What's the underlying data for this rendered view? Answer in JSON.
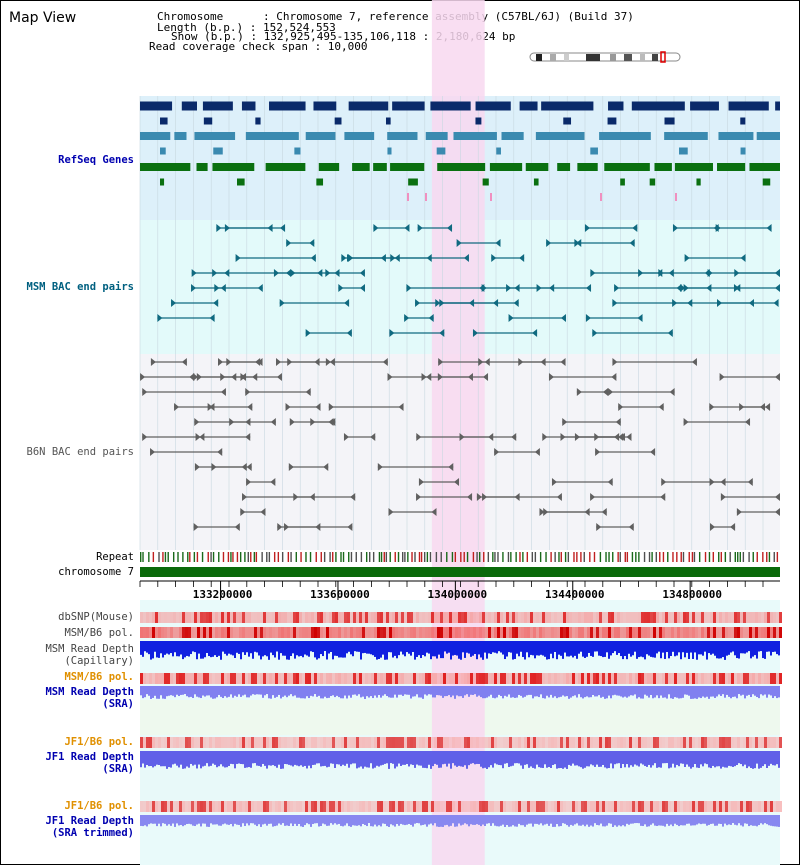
{
  "header": {
    "title": "Map View",
    "info": [
      "Chromosome      : Chromosome 7, reference assembly (C57BL/6J) (Build 37)",
      "Length (b.p.) : 152,524,553",
      "Show (b.p.) : 132,925,495-135,106,118 : 2,180,624 bp",
      "Read coverage check span : 10,000"
    ]
  },
  "tracks": {
    "refseq": "RefSeq Genes",
    "msm_bac": "MSM BAC end pairs",
    "b6n_bac": "B6N BAC end pairs",
    "repeat": "Repeat",
    "chromosome": "chromosome 7",
    "dbsnp": "dbSNP(Mouse)",
    "msm_b6_pol": "MSM/B6 pol.",
    "msm_depth_cap_1": "MSM Read Depth",
    "msm_depth_cap_2": "(Capillary)",
    "msm_b6_pol_2": "MSM/B6 pol.",
    "msm_depth_sra_1": "MSM Read Depth",
    "msm_depth_sra_2": "(SRA)",
    "jf1_b6_pol": "JF1/B6 pol.",
    "jf1_depth_sra_1": "JF1 Read Depth",
    "jf1_depth_sra_2": "(SRA)",
    "jf1_b6_pol_2": "JF1/B6 pol.",
    "jf1_depth_trim_1": "JF1 Read Depth",
    "jf1_depth_trim_2": "(SRA trimmed)"
  },
  "ruler": {
    "ticks": [
      "133200000",
      "133600000",
      "134000000",
      "134400000",
      "134800000"
    ],
    "tick_values": [
      133200000,
      133600000,
      134000000,
      134400000,
      134800000
    ],
    "start": 132925495,
    "end": 135106118
  },
  "highlight": {
    "start": 133920000,
    "end": 134100000
  },
  "colors": {
    "refseq_bg": "#ddf0fa",
    "msm_bg": "#e3fafa",
    "b6n_bg": "#f4f4f8",
    "highlight": "#f8d8f0",
    "refseq_dark": "#0a2a6a",
    "refseq_mid": "#3a8ab0",
    "refseq_green": "#0a7010",
    "msm_pair": "#106a80",
    "b6n_pair": "#606060",
    "chromosome_bar": "#0a6a0a",
    "label_blue": "#0000b0",
    "label_teal": "#006080",
    "label_gray": "#555555",
    "label_orange": "#e09000"
  }
}
